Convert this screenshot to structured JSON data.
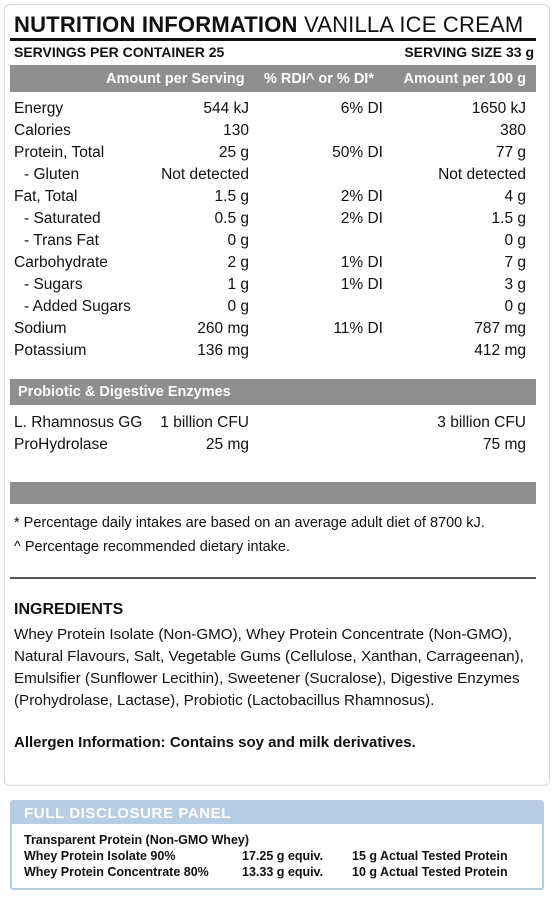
{
  "title": {
    "bold": "NUTRITION INFORMATION",
    "thin": "VANILLA ICE CREAM"
  },
  "servings": {
    "left": "SERVINGS PER CONTAINER 25",
    "right": "SERVING SIZE 33 g"
  },
  "header": {
    "per_serving": "Amount per Serving",
    "rdi": "% RDI^ or % DI*",
    "per_100": "Amount per 100 g"
  },
  "nutrients": [
    {
      "name": "Energy",
      "amount": "544 kJ",
      "rdi": "6% DI",
      "per100": "1650 kJ"
    },
    {
      "name": "Calories",
      "amount": "130",
      "rdi": "",
      "per100": "380"
    },
    {
      "name": "Protein, Total",
      "amount": "25 g",
      "rdi": "50% DI",
      "per100": "77 g"
    },
    {
      "name": "- Gluten",
      "amount": "Not detected",
      "rdi": "",
      "per100": "Not detected"
    },
    {
      "name": "Fat, Total",
      "amount": "1.5 g",
      "rdi": "2% DI",
      "per100": "4 g"
    },
    {
      "name": "- Saturated",
      "amount": "0.5 g",
      "rdi": "2% DI",
      "per100": "1.5 g"
    },
    {
      "name": "- Trans Fat",
      "amount": "0 g",
      "rdi": "",
      "per100": "0 g"
    },
    {
      "name": "Carbohydrate",
      "amount": "2 g",
      "rdi": "1% DI",
      "per100": "7 g"
    },
    {
      "name": "- Sugars",
      "amount": "1 g",
      "rdi": "1% DI",
      "per100": "3 g"
    },
    {
      "name": "- Added Sugars",
      "amount": "0 g",
      "rdi": "",
      "per100": "0 g"
    },
    {
      "name": "Sodium",
      "amount": "260 mg",
      "rdi": "11% DI",
      "per100": "787 mg"
    },
    {
      "name": "Potassium",
      "amount": "136 mg",
      "rdi": "",
      "per100": "412 mg"
    }
  ],
  "probiotic_title": "Probiotic & Digestive Enzymes",
  "probiotics": [
    {
      "name": "L. Rhamnosus GG",
      "amount": "1 billion CFU",
      "per100": "3 billion CFU"
    },
    {
      "name": "ProHydrolase",
      "amount": "25 mg",
      "per100": "75 mg"
    }
  ],
  "footnotes": [
    "* Percentage daily intakes are based on an average adult diet of 8700 kJ.",
    "^ Percentage recommended dietary intake."
  ],
  "ingredients": {
    "title": "INGREDIENTS",
    "text": "Whey Protein Isolate (Non-GMO), Whey Protein Concentrate (Non-GMO), Natural Flavours, Salt, Vegetable Gums (Cellulose, Xanthan, Carrageenan), Emulsifier (Sunflower Lecithin), Sweetener (Sucralose), Digestive Enzymes (Prohydrolase, Lactase), Probiotic (Lactobacillus Rhamnosus).",
    "allergen": "Allergen Information: Contains soy and milk derivatives."
  },
  "disclosure": {
    "title": "FULL DISCLOSURE PANEL",
    "subtitle": "Transparent Protein (Non-GMO Whey)",
    "rows": [
      {
        "name": "Whey Protein Isolate 90%",
        "equiv": "17.25 g equiv.",
        "tested": "15 g Actual Tested Protein"
      },
      {
        "name": "Whey Protein Concentrate 80%",
        "equiv": "13.33 g equiv.",
        "tested": "10 g Actual Tested Protein"
      }
    ]
  }
}
